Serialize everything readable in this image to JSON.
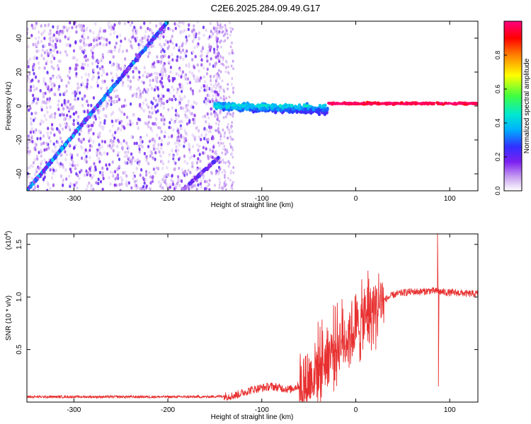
{
  "title": "C2E6.2025.284.09.49.G17",
  "chart_data": [
    {
      "type": "heatmap",
      "xlabel": "Height of straight line (km)",
      "ylabel": "Frequency (Hz)",
      "xlim": [
        -350,
        130
      ],
      "ylim": [
        -50,
        50
      ],
      "xticks": [
        -300,
        -200,
        -100,
        0,
        100
      ],
      "yticks": [
        -40,
        -20,
        0,
        20,
        40
      ],
      "colorbar": {
        "label": "Normalized spectral amplitude",
        "range": [
          0,
          1
        ],
        "ticks": [
          "0.0",
          "0.2",
          "0.4",
          "0.6",
          "0.8"
        ],
        "colors": [
          "#ffffff",
          "#c8a0f0",
          "#7d20f0",
          "#3030ff",
          "#00b0ff",
          "#00e8d0",
          "#40ff40",
          "#ffff00",
          "#ff8000",
          "#ff0000",
          "#ff0080"
        ]
      },
      "features": [
        {
          "name": "",
          "x": [
            -350,
            -200
          ],
          "y": [
            -50,
            50
          ],
          "amplitude": 0.35
        },
        {
          "name": "",
          "x": [
            -185,
            -145
          ],
          "y": [
            -50,
            -30
          ],
          "amplitude": 0.25
        },
        {
          "x_from": -150,
          "x_to": -30,
          "y_center": 0,
          "y_spread": 8,
          "amplitude": 0.4
        },
        {
          "x_from": -30,
          "x_to": 130,
          "y_center": 1.5,
          "y_spread": 2,
          "amplitude": 0.95
        }
      ]
    },
    {
      "type": "line",
      "xlabel": "Height of straight line (km)",
      "ylabel": "SNR (10 * v/v)",
      "y_multiplier": "(x10",
      "y_multiplier_exp": "4",
      "y_multiplier_close": ")",
      "xlim": [
        -350,
        130
      ],
      "ylim": [
        0,
        1.6
      ],
      "xticks": [
        -300,
        -200,
        -100,
        0,
        100
      ],
      "yticks": [
        "0.5",
        "1.0",
        "1.5"
      ],
      "series_color": "#e83030",
      "profile": [
        {
          "x": -350,
          "y": 0.05
        },
        {
          "x": -300,
          "y": 0.05
        },
        {
          "x": -250,
          "y": 0.05
        },
        {
          "x": -200,
          "y": 0.05
        },
        {
          "x": -160,
          "y": 0.05
        },
        {
          "x": -130,
          "y": 0.06
        },
        {
          "x": -110,
          "y": 0.12
        },
        {
          "x": -90,
          "y": 0.15
        },
        {
          "x": -70,
          "y": 0.12
        },
        {
          "x": -50,
          "y": 0.2
        },
        {
          "x": -40,
          "y": 0.35
        },
        {
          "x": -30,
          "y": 0.45
        },
        {
          "x": -20,
          "y": 0.55
        },
        {
          "x": -10,
          "y": 0.62
        },
        {
          "x": 0,
          "y": 0.7
        },
        {
          "x": 10,
          "y": 0.78
        },
        {
          "x": 20,
          "y": 0.9
        },
        {
          "x": 30,
          "y": 0.97
        },
        {
          "x": 40,
          "y": 1.02
        },
        {
          "x": 50,
          "y": 1.04
        },
        {
          "x": 60,
          "y": 1.05
        },
        {
          "x": 70,
          "y": 1.05
        },
        {
          "x": 80,
          "y": 1.06
        },
        {
          "x": 90,
          "y": 1.05
        },
        {
          "x": 100,
          "y": 1.04
        },
        {
          "x": 110,
          "y": 1.04
        },
        {
          "x": 120,
          "y": 1.03
        },
        {
          "x": 130,
          "y": 1.03
        }
      ],
      "spikes": [
        {
          "x": 13,
          "y": 1.25
        },
        {
          "x": 87,
          "y": 1.6
        },
        {
          "x": 88,
          "y": 0.15
        }
      ]
    }
  ]
}
